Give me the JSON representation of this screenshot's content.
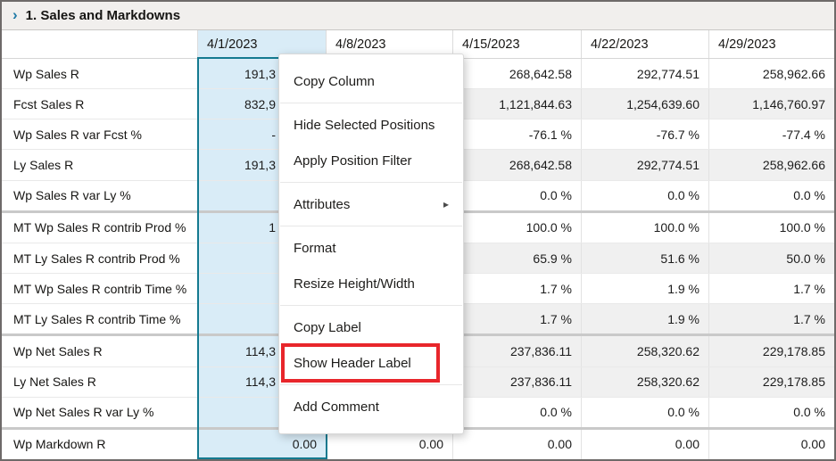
{
  "window": {
    "title": "1. Sales and Markdowns",
    "chevron_icon": "›"
  },
  "columns": [
    "4/1/2023",
    "4/8/2023",
    "4/15/2023",
    "4/22/2023",
    "4/29/2023"
  ],
  "selected_column": "4/1/2023",
  "rows": [
    {
      "label": "Wp Sales R",
      "shaded": false,
      "group_start": false,
      "values": [
        "191,3",
        "",
        "268,642.58",
        "292,774.51",
        "258,962.66"
      ]
    },
    {
      "label": "Fcst Sales R",
      "shaded": true,
      "group_start": false,
      "values": [
        "832,9",
        "",
        "1,121,844.63",
        "1,254,639.60",
        "1,146,760.97"
      ]
    },
    {
      "label": "Wp Sales R var Fcst %",
      "shaded": false,
      "group_start": false,
      "values": [
        "-",
        "",
        "-76.1 %",
        "-76.7 %",
        "-77.4 %"
      ]
    },
    {
      "label": "Ly Sales R",
      "shaded": true,
      "group_start": false,
      "values": [
        "191,3",
        "",
        "268,642.58",
        "292,774.51",
        "258,962.66"
      ]
    },
    {
      "label": "Wp Sales R var Ly %",
      "shaded": false,
      "group_start": false,
      "values": [
        "",
        "",
        "0.0 %",
        "0.0 %",
        "0.0 %"
      ]
    },
    {
      "label": "MT Wp Sales R contrib Prod %",
      "shaded": false,
      "group_start": true,
      "values": [
        "1",
        "",
        "100.0 %",
        "100.0 %",
        "100.0 %"
      ]
    },
    {
      "label": "MT Ly Sales R contrib Prod %",
      "shaded": true,
      "group_start": false,
      "values": [
        "",
        "",
        "65.9 %",
        "51.6 %",
        "50.0 %"
      ]
    },
    {
      "label": "MT Wp Sales R contrib Time %",
      "shaded": false,
      "group_start": false,
      "values": [
        "",
        "",
        "1.7 %",
        "1.9 %",
        "1.7 %"
      ]
    },
    {
      "label": "MT Ly Sales R contrib Time %",
      "shaded": true,
      "group_start": false,
      "values": [
        "",
        "",
        "1.7 %",
        "1.9 %",
        "1.7 %"
      ]
    },
    {
      "label": "Wp Net Sales R",
      "shaded": true,
      "group_start": true,
      "values": [
        "114,3",
        "",
        "237,836.11",
        "258,320.62",
        "229,178.85"
      ]
    },
    {
      "label": "Ly Net Sales R",
      "shaded": true,
      "group_start": false,
      "values": [
        "114,3",
        "",
        "237,836.11",
        "258,320.62",
        "229,178.85"
      ]
    },
    {
      "label": "Wp Net Sales R var Ly %",
      "shaded": false,
      "group_start": false,
      "values": [
        "",
        "",
        "0.0 %",
        "0.0 %",
        "0.0 %"
      ]
    },
    {
      "label": "Wp Markdown R",
      "shaded": false,
      "group_start": true,
      "values": [
        "0.00",
        "0.00",
        "0.00",
        "0.00",
        "0.00"
      ]
    }
  ],
  "context_menu": {
    "submenu_arrow_icon": "▸",
    "items": [
      {
        "label": "Copy Column"
      },
      {
        "separator": true
      },
      {
        "label": "Hide Selected Positions"
      },
      {
        "label": "Apply Position Filter"
      },
      {
        "separator": true
      },
      {
        "label": "Attributes",
        "submenu": true
      },
      {
        "separator": true
      },
      {
        "label": "Format"
      },
      {
        "label": "Resize Height/Width"
      },
      {
        "separator": true
      },
      {
        "label": "Copy Label"
      },
      {
        "label": "Show Header Label",
        "highlighted": true
      },
      {
        "separator": true
      },
      {
        "label": "Add Comment"
      }
    ]
  },
  "colors": {
    "selected_column_fill": "#d9ecf7",
    "selection_border_teal": "#147a90",
    "highlight_red": "#e8262b",
    "chevron_blue": "#1f7aa6",
    "shaded_row": "#f0f0f0"
  }
}
